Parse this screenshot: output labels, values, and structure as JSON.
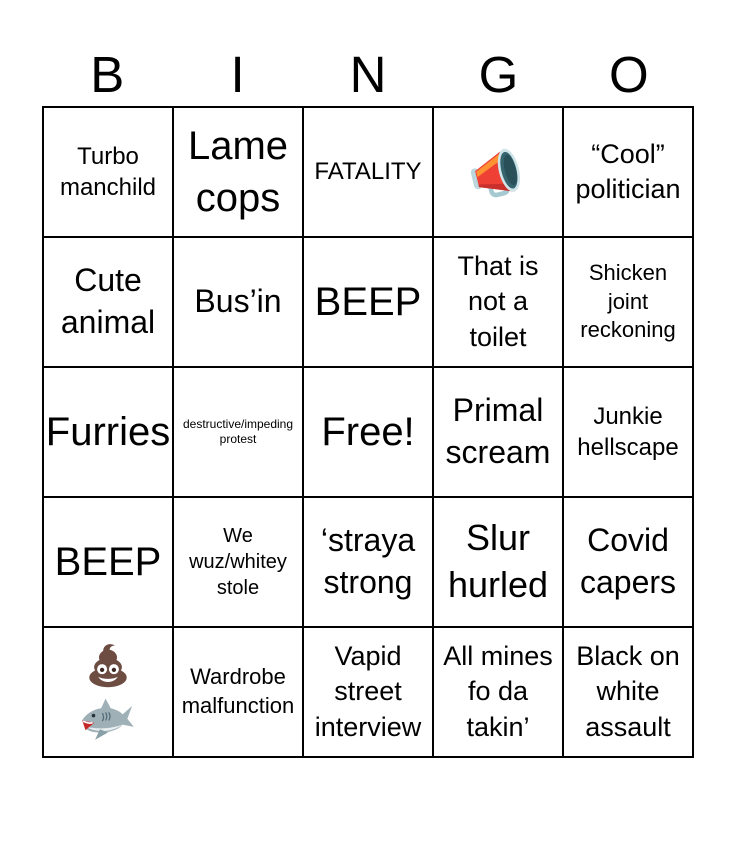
{
  "page": {
    "background": "#ffffff",
    "grid_border_color": "#000000",
    "text_color": "#000000"
  },
  "title": {
    "letters": [
      "B",
      "I",
      "N",
      "G",
      "O"
    ]
  },
  "icon_glyphs": {
    "megaphone-icon": "📣",
    "poop-icon": "💩",
    "shark-icon": "🦈"
  },
  "icon_colors": {
    "megaphone_red": "#ee4035",
    "megaphone_stripe_orange": "#ff9233",
    "megaphone_mouth_teal": "#35646e",
    "megaphone_trim_blue": "#b9d7dd",
    "poop_brown": "#6d4c41",
    "shark_gray": "#9fb0b7",
    "shark_belly": "#e9eef0",
    "shark_mouth_red": "#c62828"
  },
  "grid": {
    "rows": [
      [
        {
          "kind": "text",
          "size": "md",
          "lines": [
            "Turbo",
            "manchild"
          ]
        },
        {
          "kind": "text",
          "size": "xxxl",
          "lines": [
            "Lame",
            "cops"
          ]
        },
        {
          "kind": "text",
          "size": "md",
          "lines": [
            "FATALITY"
          ]
        },
        {
          "kind": "icons",
          "icons": [
            {
              "name": "megaphone-icon",
              "char": "📣"
            }
          ]
        },
        {
          "kind": "text",
          "size": "lg",
          "lines": [
            "“Cool”",
            "politician"
          ]
        }
      ],
      [
        {
          "kind": "text",
          "size": "xl",
          "lines": [
            "Cute",
            "animal"
          ]
        },
        {
          "kind": "text",
          "size": "xl",
          "lines": [
            "Bus’in"
          ]
        },
        {
          "kind": "text",
          "size": "xxxl",
          "lines": [
            "BEEP"
          ]
        },
        {
          "kind": "text",
          "size": "lg",
          "lines": [
            "That is",
            "not a",
            "toilet"
          ]
        },
        {
          "kind": "text",
          "size": "smd",
          "lines": [
            "Shicken",
            "joint",
            "reckoning"
          ]
        }
      ],
      [
        {
          "kind": "text",
          "size": "xxxl",
          "lines": [
            "Furries"
          ]
        },
        {
          "kind": "text",
          "size": "xs",
          "lines": [
            "destructive/impeding",
            "protest"
          ]
        },
        {
          "kind": "text",
          "size": "xxxl",
          "lines": [
            "Free!"
          ]
        },
        {
          "kind": "text",
          "size": "xl",
          "lines": [
            "Primal",
            "scream"
          ]
        },
        {
          "kind": "text",
          "size": "md",
          "lines": [
            "Junkie",
            "hellscape"
          ]
        }
      ],
      [
        {
          "kind": "text",
          "size": "xxxl",
          "lines": [
            "BEEP"
          ]
        },
        {
          "kind": "text",
          "size": "sm",
          "lines": [
            "We",
            "wuz/whitey",
            "stole"
          ]
        },
        {
          "kind": "text",
          "size": "xl",
          "lines": [
            "‘straya",
            "strong"
          ]
        },
        {
          "kind": "text",
          "size": "xxl",
          "lines": [
            "Slur",
            "hurled"
          ]
        },
        {
          "kind": "text",
          "size": "xl",
          "lines": [
            "Covid",
            "capers"
          ]
        }
      ],
      [
        {
          "kind": "icons",
          "icons": [
            {
              "name": "poop-icon",
              "char": "💩"
            },
            {
              "name": "shark-icon",
              "char": "🦈"
            }
          ]
        },
        {
          "kind": "text",
          "size": "smd",
          "lines": [
            "Wardrobe",
            "malfunction"
          ]
        },
        {
          "kind": "text",
          "size": "lg",
          "lines": [
            "Vapid",
            "street",
            "interview"
          ]
        },
        {
          "kind": "text",
          "size": "lg",
          "lines": [
            "All mines",
            "fo da",
            "takin’"
          ]
        },
        {
          "kind": "text",
          "size": "lg",
          "lines": [
            "Black on",
            "white",
            "assault"
          ]
        }
      ]
    ]
  }
}
